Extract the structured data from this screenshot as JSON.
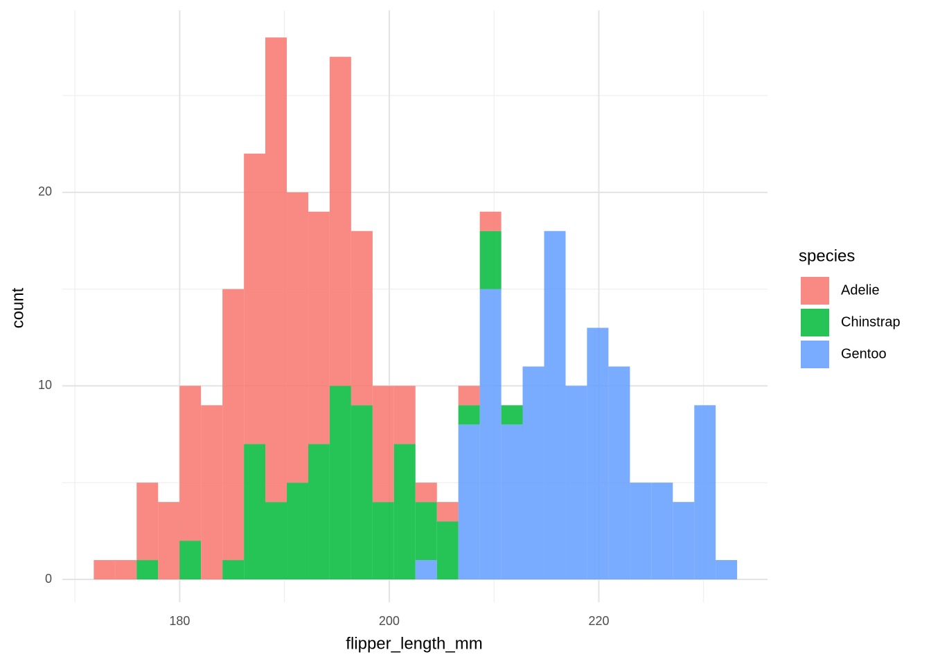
{
  "chart_data": {
    "type": "histogram",
    "stacked": true,
    "x_label": "flipper_length_mm",
    "y_label": "count",
    "legend_title": "species",
    "legend_position": "right",
    "grid": true,
    "alpha": 0.85,
    "bins": [
      171.8,
      173.85,
      175.89,
      177.94,
      179.99,
      182.03,
      184.08,
      186.13,
      188.17,
      190.22,
      192.27,
      194.31,
      196.36,
      198.41,
      200.45,
      202.5,
      204.55,
      206.59,
      208.64,
      210.69,
      212.73,
      214.78,
      216.83,
      218.87,
      220.92,
      222.97,
      225.01,
      227.06,
      229.11,
      231.15,
      233.2
    ],
    "series": [
      {
        "name": "Adelie",
        "color": "#F8766D",
        "values": [
          1,
          1,
          4,
          4,
          8,
          9,
          14,
          15,
          24,
          15,
          12,
          17,
          9,
          6,
          3,
          1,
          1,
          1,
          1,
          0,
          0,
          0,
          0,
          0,
          0,
          0,
          0,
          0,
          0,
          0
        ]
      },
      {
        "name": "Chinstrap",
        "color": "#00BA38",
        "values": [
          0,
          0,
          1,
          0,
          2,
          0,
          1,
          7,
          4,
          5,
          7,
          10,
          9,
          4,
          7,
          3,
          3,
          1,
          3,
          1,
          0,
          0,
          0,
          0,
          0,
          0,
          0,
          0,
          0,
          0
        ]
      },
      {
        "name": "Gentoo",
        "color": "#619CFF",
        "values": [
          0,
          0,
          0,
          0,
          0,
          0,
          0,
          0,
          0,
          0,
          0,
          0,
          0,
          0,
          0,
          1,
          0,
          8,
          15,
          8,
          11,
          18,
          10,
          13,
          11,
          5,
          5,
          4,
          9,
          1
        ]
      }
    ],
    "xlim": [
      168.8,
      236.1
    ],
    "xticks": [
      180,
      200,
      220
    ],
    "x_minor_ticks": [
      170,
      190,
      210,
      230
    ],
    "ylim": [
      -1.18,
      29.4
    ],
    "yticks": [
      0,
      10,
      20
    ],
    "y_minor_ticks": [
      5,
      15,
      25
    ]
  }
}
